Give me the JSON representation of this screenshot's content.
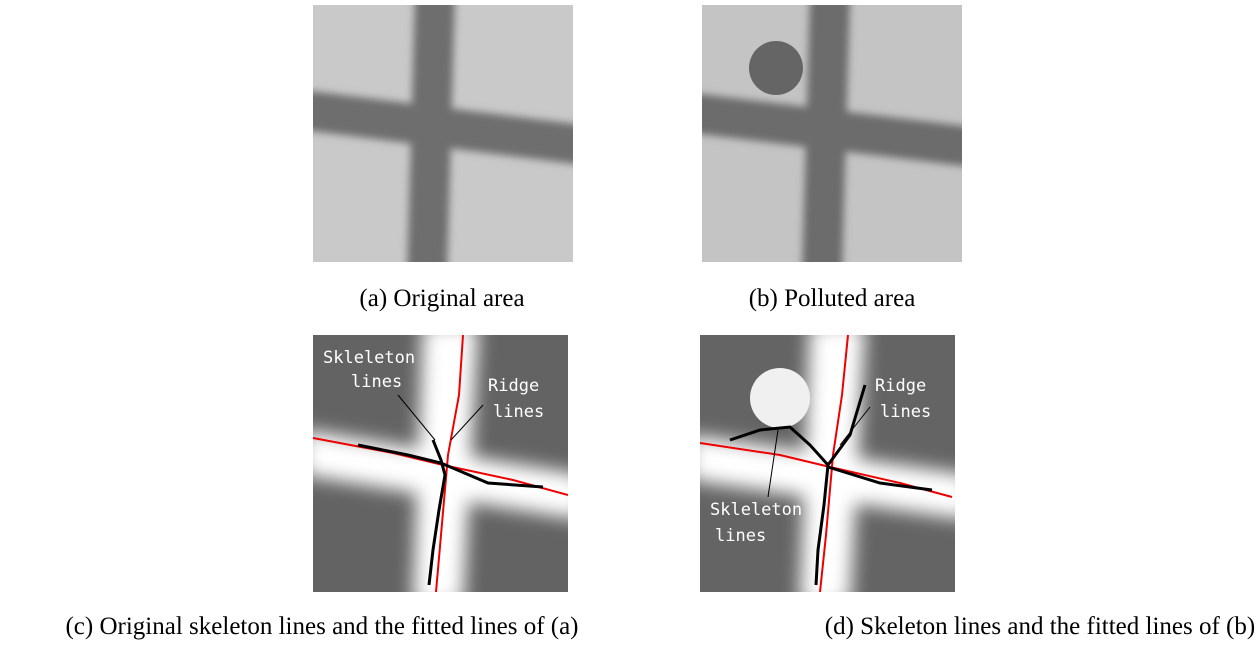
{
  "panels": [
    {
      "caption": "(a) Original area"
    },
    {
      "caption": "(b) Polluted area"
    },
    {
      "caption": "(c) Original skeleton lines and the fitted lines of (a)",
      "annotations": [
        {
          "lines": [
            "Skleleton",
            "lines"
          ]
        },
        {
          "lines": [
            "Ridge",
            "lines"
          ]
        }
      ]
    },
    {
      "caption": "(d) Skeleton lines and the fitted lines of (b)",
      "annotations": [
        {
          "lines": [
            "Ridge",
            "lines"
          ]
        },
        {
          "lines": [
            "Skleleton",
            "lines"
          ]
        }
      ]
    }
  ]
}
